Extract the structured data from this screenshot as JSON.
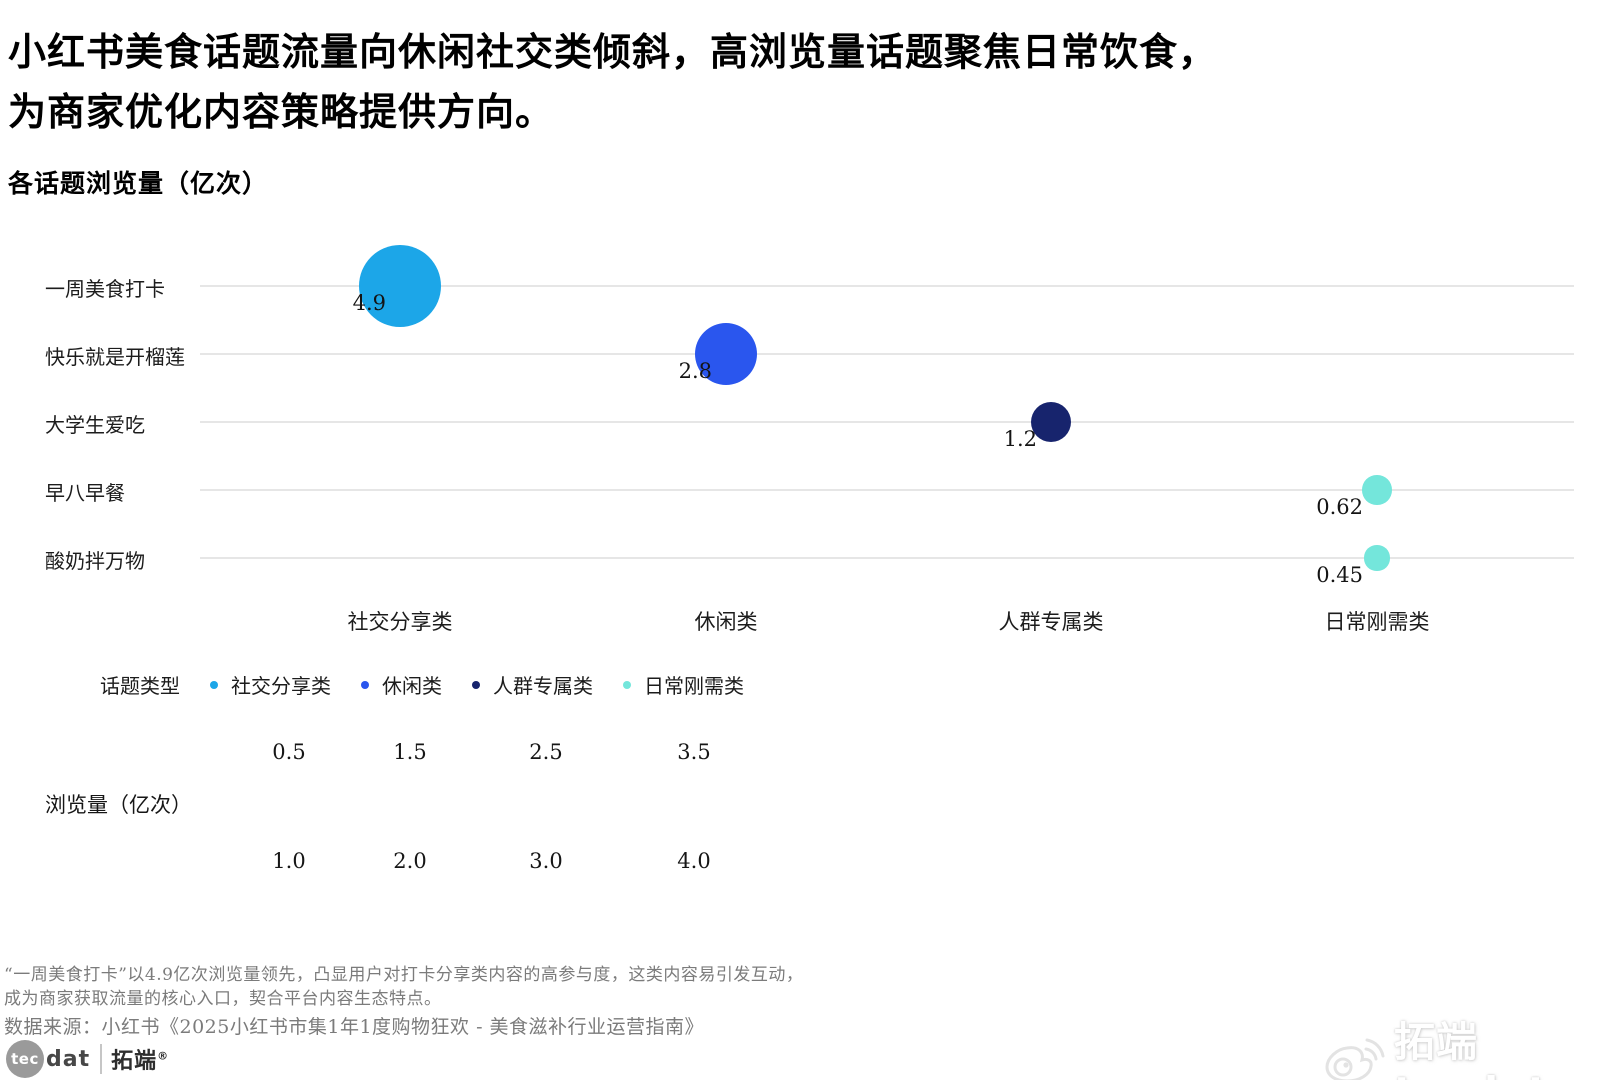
{
  "header": {
    "title_lines": [
      "小红书美食话题流量向休闲社交类倾斜，高浏览量话题聚焦日常饮食，",
      "为商家优化内容策略提供方向。"
    ],
    "subtitle": "各话题浏览量（亿次）"
  },
  "chart_data": {
    "type": "scatter",
    "subtype": "bubble",
    "title": "各话题浏览量（亿次）",
    "value_unit": "亿次",
    "grid": true,
    "legend_position": "bottom",
    "x_categories": [
      "社交分享类",
      "休闲类",
      "人群专属类",
      "日常刚需类"
    ],
    "y_categories": [
      "一周美食打卡",
      "快乐就是开榴莲",
      "大学生爱吃",
      "早八早餐",
      "酸奶拌万物"
    ],
    "points": [
      {
        "topic": "一周美食打卡",
        "category": "社交分享类",
        "value": 4.9,
        "label": "4.9",
        "color": "#1ca6e8"
      },
      {
        "topic": "快乐就是开榴莲",
        "category": "休闲类",
        "value": 2.8,
        "label": "2.8",
        "color": "#2a56ee"
      },
      {
        "topic": "大学生爱吃",
        "category": "人群专属类",
        "value": 1.2,
        "label": "1.2",
        "color": "#17246d"
      },
      {
        "topic": "早八早餐",
        "category": "日常刚需类",
        "value": 0.62,
        "label": "0.62",
        "color": "#74e6db"
      },
      {
        "topic": "酸奶拌万物",
        "category": "日常刚需类",
        "value": 0.45,
        "label": "0.45",
        "color": "#74e6db"
      }
    ]
  },
  "legend": {
    "title": "话题类型",
    "items": [
      {
        "label": "社交分享类",
        "color": "#1ca6e8"
      },
      {
        "label": "休闲类",
        "color": "#2a56ee"
      },
      {
        "label": "人群专属类",
        "color": "#17246d"
      },
      {
        "label": "日常刚需类",
        "color": "#74e6db"
      }
    ]
  },
  "size_legend": {
    "label": "浏览量（亿次）",
    "top_row": [
      "0.5",
      "1.5",
      "2.5",
      "3.5"
    ],
    "bottom_row": [
      "1.0",
      "2.0",
      "3.0",
      "4.0"
    ]
  },
  "footnote": {
    "lines": [
      "“一周美食打卡”以4.9亿次浏览量领先，凸显用户对打卡分享类内容的高参与度，这类内容易引发互动，",
      "成为商家获取流量的核心入口，契合平台内容生态特点。"
    ]
  },
  "source": "数据来源：小红书《2025小红书市集1年1度购物狂欢 - 美食滋补行业运营指南》",
  "logo": {
    "tec": "tec",
    "dat": "dat",
    "cn": "拓端",
    "reg": "®"
  },
  "watermark": {
    "text": "拓端tecdat"
  },
  "colors": {
    "social": "#1ca6e8",
    "leisure": "#2a56ee",
    "group": "#17246d",
    "daily": "#74e6db",
    "gridline": "#e6e6e6"
  }
}
